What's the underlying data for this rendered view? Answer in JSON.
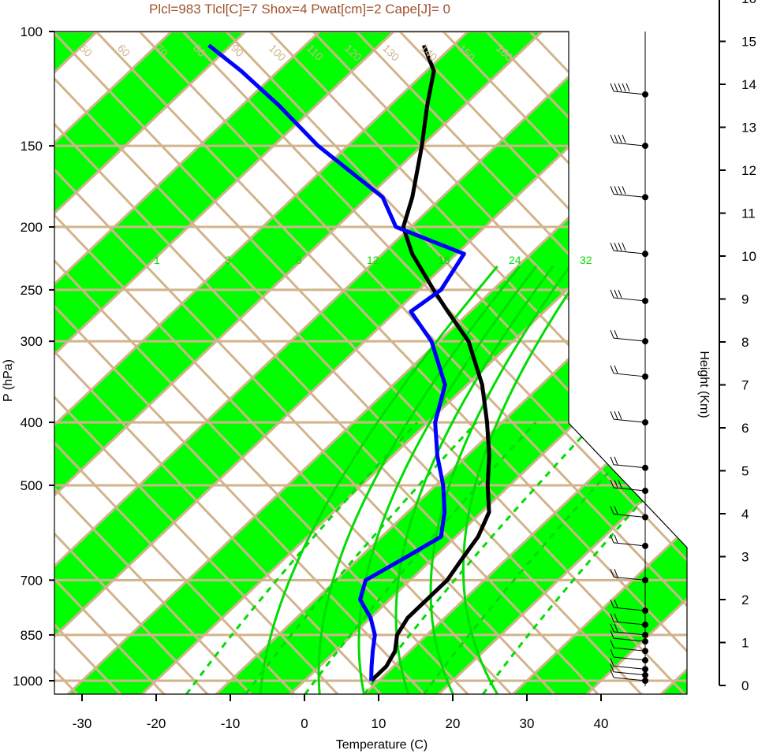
{
  "title": "Plcl=983 Tlcl[C]=7 Shox=4 Pwat[cm]=2 Cape[J]= 0",
  "colors": {
    "band": "#00ff00",
    "isotherm": "#d2b48c",
    "temperature": "#000000",
    "dewpoint": "#0000ff",
    "moist_adiabat": "#00dd00",
    "title": "#a0522d"
  },
  "chart_data": {
    "type": "line",
    "chart_kind": "skew-T log-P diagram",
    "xlabel": "Temperature (C)",
    "ylabel": "P (hPa)",
    "y2label": "Height (Km)",
    "x_ticks": [
      -30,
      -20,
      -10,
      0,
      10,
      20,
      30,
      40
    ],
    "y_ticks": [
      100,
      150,
      200,
      250,
      300,
      400,
      500,
      700,
      850,
      1000
    ],
    "y_scale": "log",
    "y2_ticks": [
      0,
      1,
      2,
      3,
      4,
      5,
      6,
      7,
      8,
      9,
      10,
      11,
      12,
      13,
      14,
      15,
      16
    ],
    "xlim": [
      -33,
      36
    ],
    "ylim": [
      1050,
      100
    ],
    "isotherm_labels": [
      "-30",
      "-20",
      "-10",
      "0",
      "10",
      "20",
      "30",
      "40",
      "50",
      "60",
      "70",
      "80",
      "90",
      "100",
      "110",
      "120",
      "130",
      "140",
      "150",
      "160"
    ],
    "mixing_ratio_labels": [
      "1",
      "3",
      "8",
      "12",
      "16",
      "24",
      "32"
    ],
    "series": [
      {
        "name": "temperature",
        "points": [
          {
            "p": 1000,
            "t": 9
          },
          {
            "p": 950,
            "t": 9
          },
          {
            "p": 900,
            "t": 8
          },
          {
            "p": 850,
            "t": 6
          },
          {
            "p": 800,
            "t": 5
          },
          {
            "p": 750,
            "t": 5
          },
          {
            "p": 700,
            "t": 5
          },
          {
            "p": 650,
            "t": 4
          },
          {
            "p": 600,
            "t": 3
          },
          {
            "p": 550,
            "t": 1
          },
          {
            "p": 500,
            "t": -3
          },
          {
            "p": 450,
            "t": -7
          },
          {
            "p": 400,
            "t": -12
          },
          {
            "p": 350,
            "t": -18
          },
          {
            "p": 300,
            "t": -26
          },
          {
            "p": 270,
            "t": -33
          },
          {
            "p": 250,
            "t": -38
          },
          {
            "p": 220,
            "t": -46
          },
          {
            "p": 200,
            "t": -51
          },
          {
            "p": 180,
            "t": -54
          },
          {
            "p": 150,
            "t": -60
          },
          {
            "p": 130,
            "t": -65
          },
          {
            "p": 115,
            "t": -69
          },
          {
            "p": 105,
            "t": -74
          }
        ]
      },
      {
        "name": "dewpoint",
        "points": [
          {
            "p": 1000,
            "t": 9
          },
          {
            "p": 950,
            "t": 7
          },
          {
            "p": 900,
            "t": 5
          },
          {
            "p": 850,
            "t": 3
          },
          {
            "p": 800,
            "t": 0
          },
          {
            "p": 750,
            "t": -4
          },
          {
            "p": 700,
            "t": -6
          },
          {
            "p": 650,
            "t": -4
          },
          {
            "p": 600,
            "t": -2
          },
          {
            "p": 550,
            "t": -5
          },
          {
            "p": 500,
            "t": -9
          },
          {
            "p": 450,
            "t": -14
          },
          {
            "p": 400,
            "t": -19
          },
          {
            "p": 350,
            "t": -23
          },
          {
            "p": 300,
            "t": -31
          },
          {
            "p": 270,
            "t": -38
          },
          {
            "p": 250,
            "t": -37
          },
          {
            "p": 220,
            "t": -39
          },
          {
            "p": 200,
            "t": -52
          },
          {
            "p": 180,
            "t": -58
          },
          {
            "p": 150,
            "t": -74
          },
          {
            "p": 130,
            "t": -85
          },
          {
            "p": 115,
            "t": -95
          },
          {
            "p": 105,
            "t": -103
          }
        ]
      }
    ],
    "wind_barbs": [
      {
        "p": 1000,
        "speed_kt": 10
      },
      {
        "p": 980,
        "speed_kt": 10
      },
      {
        "p": 960,
        "speed_kt": 10
      },
      {
        "p": 930,
        "speed_kt": 10
      },
      {
        "p": 900,
        "speed_kt": 10
      },
      {
        "p": 870,
        "speed_kt": 10
      },
      {
        "p": 850,
        "speed_kt": 15
      },
      {
        "p": 820,
        "speed_kt": 15
      },
      {
        "p": 780,
        "speed_kt": 20
      },
      {
        "p": 700,
        "speed_kt": 20
      },
      {
        "p": 620,
        "speed_kt": 20
      },
      {
        "p": 560,
        "speed_kt": 20
      },
      {
        "p": 510,
        "speed_kt": 25
      },
      {
        "p": 470,
        "speed_kt": 20
      },
      {
        "p": 400,
        "speed_kt": 30
      },
      {
        "p": 340,
        "speed_kt": 20
      },
      {
        "p": 300,
        "speed_kt": 20
      },
      {
        "p": 260,
        "speed_kt": 25
      },
      {
        "p": 220,
        "speed_kt": 35
      },
      {
        "p": 180,
        "speed_kt": 40
      },
      {
        "p": 150,
        "speed_kt": 40
      },
      {
        "p": 125,
        "speed_kt": 50
      }
    ]
  }
}
